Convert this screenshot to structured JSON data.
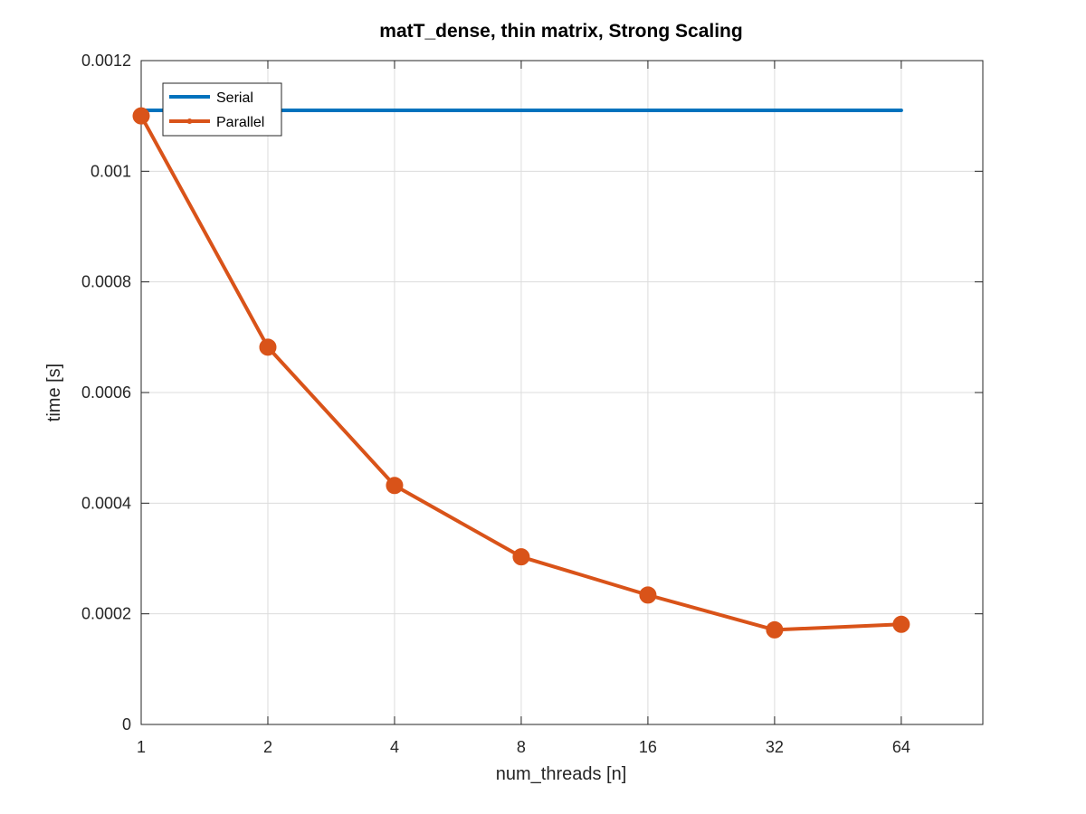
{
  "chart_data": {
    "type": "line",
    "title": "matT_dense, thin matrix, Strong Scaling",
    "xlabel": "num_threads [n]",
    "ylabel": "time [s]",
    "x_scale": "log2",
    "x": [
      1,
      2,
      4,
      8,
      16,
      32,
      64
    ],
    "xlim": [
      1,
      100
    ],
    "x_ticks": [
      "1",
      "2",
      "4",
      "8",
      "16",
      "32",
      "64"
    ],
    "ylim": [
      0,
      0.0012
    ],
    "y_ticks": [
      "0",
      "0.0002",
      "0.0004",
      "0.0006",
      "0.0008",
      "0.001",
      "0.0012"
    ],
    "grid": true,
    "legend_position": "top-left",
    "series": [
      {
        "name": "Serial",
        "color": "#0072BD",
        "marker": "none",
        "values": [
          0.00111,
          0.00111,
          0.00111,
          0.00111,
          0.00111,
          0.00111,
          0.00111
        ]
      },
      {
        "name": "Parallel",
        "color": "#D95319",
        "marker": "circle",
        "values": [
          0.0011,
          0.000682,
          0.000432,
          0.000303,
          0.000234,
          0.000171,
          0.000181
        ]
      }
    ]
  }
}
